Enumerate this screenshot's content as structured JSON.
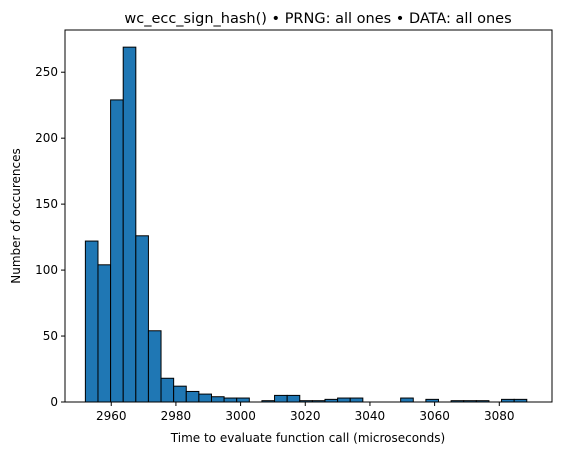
{
  "chart_data": {
    "type": "bar",
    "title": "wc_ecc_sign_hash() • PRNG: all ones • DATA: all ones",
    "xlabel": "Time to evaluate function call (microseconds)",
    "ylabel": "Number of occurences",
    "xlim": [
      2945.7,
      3096.3
    ],
    "ylim": [
      0,
      282
    ],
    "xticks": [
      2960,
      2980,
      3000,
      3020,
      3040,
      3060,
      3080
    ],
    "yticks": [
      0,
      50,
      100,
      150,
      200,
      250
    ],
    "bin_start": 2952.0,
    "bin_width": 3.9,
    "values": [
      122,
      104,
      229,
      269,
      126,
      54,
      18,
      12,
      8,
      6,
      4,
      3,
      3,
      0,
      1,
      5,
      5,
      1,
      1,
      2,
      3,
      3,
      0,
      0,
      0,
      3,
      0,
      2,
      0,
      1,
      1,
      1,
      0,
      2,
      2
    ],
    "grid": false,
    "legend": "none",
    "bar_color": "#1f77b4"
  }
}
